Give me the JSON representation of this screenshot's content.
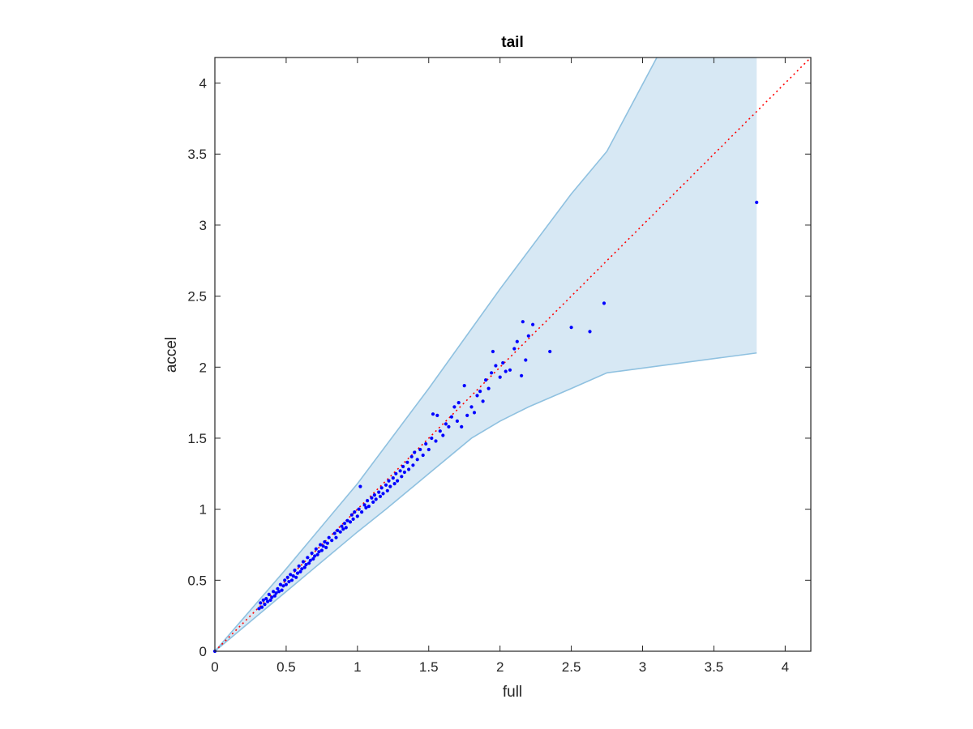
{
  "chart_data": {
    "type": "scatter",
    "title": "tail",
    "xlabel": "full",
    "ylabel": "accel",
    "xlim": [
      0,
      4.18
    ],
    "ylim": [
      0,
      4.18
    ],
    "xticks": [
      "0",
      "0.5",
      "1",
      "1.5",
      "2",
      "2.5",
      "3",
      "3.5",
      "4"
    ],
    "yticks": [
      "0",
      "0.5",
      "1",
      "1.5",
      "2",
      "2.5",
      "3",
      "3.5",
      "4"
    ],
    "grid": false,
    "colors": {
      "points": "#0000ff",
      "reference_line": "#ff0000",
      "band_fill": "#d7e8f4",
      "band_edge": "#8fc1e0",
      "axes": "#262626"
    },
    "reference_line": {
      "style": "dotted",
      "points": [
        [
          0,
          0
        ],
        [
          4.18,
          4.18
        ]
      ]
    },
    "band": {
      "upper": [
        [
          0,
          0
        ],
        [
          0.5,
          0.58
        ],
        [
          1,
          1.18
        ],
        [
          1.5,
          1.85
        ],
        [
          2,
          2.55
        ],
        [
          2.5,
          3.22
        ],
        [
          2.75,
          3.52
        ],
        [
          3.1,
          4.18
        ],
        [
          3.8,
          4.18
        ]
      ],
      "lower": [
        [
          0,
          0
        ],
        [
          0.5,
          0.42
        ],
        [
          1,
          0.84
        ],
        [
          1.2,
          1.0
        ],
        [
          1.5,
          1.25
        ],
        [
          1.8,
          1.5
        ],
        [
          2,
          1.62
        ],
        [
          2.2,
          1.72
        ],
        [
          2.5,
          1.85
        ],
        [
          2.75,
          1.96
        ],
        [
          3.8,
          2.1
        ]
      ]
    },
    "series": [
      {
        "values": [
          [
            0.0,
            0.0
          ],
          [
            0.31,
            0.3
          ],
          [
            0.32,
            0.34
          ],
          [
            0.33,
            0.31
          ],
          [
            0.34,
            0.36
          ],
          [
            0.35,
            0.33
          ],
          [
            0.36,
            0.37
          ],
          [
            0.37,
            0.35
          ],
          [
            0.38,
            0.4
          ],
          [
            0.39,
            0.36
          ],
          [
            0.4,
            0.38
          ],
          [
            0.41,
            0.42
          ],
          [
            0.42,
            0.39
          ],
          [
            0.43,
            0.41
          ],
          [
            0.44,
            0.44
          ],
          [
            0.45,
            0.42
          ],
          [
            0.46,
            0.47
          ],
          [
            0.47,
            0.43
          ],
          [
            0.48,
            0.46
          ],
          [
            0.49,
            0.5
          ],
          [
            0.5,
            0.47
          ],
          [
            0.51,
            0.52
          ],
          [
            0.52,
            0.49
          ],
          [
            0.53,
            0.54
          ],
          [
            0.54,
            0.5
          ],
          [
            0.55,
            0.53
          ],
          [
            0.56,
            0.57
          ],
          [
            0.57,
            0.52
          ],
          [
            0.58,
            0.55
          ],
          [
            0.59,
            0.6
          ],
          [
            0.6,
            0.56
          ],
          [
            0.61,
            0.58
          ],
          [
            0.62,
            0.63
          ],
          [
            0.63,
            0.59
          ],
          [
            0.64,
            0.61
          ],
          [
            0.65,
            0.66
          ],
          [
            0.66,
            0.62
          ],
          [
            0.67,
            0.64
          ],
          [
            0.68,
            0.69
          ],
          [
            0.69,
            0.65
          ],
          [
            0.7,
            0.67
          ],
          [
            0.71,
            0.72
          ],
          [
            0.72,
            0.68
          ],
          [
            0.73,
            0.7
          ],
          [
            0.74,
            0.75
          ],
          [
            0.75,
            0.71
          ],
          [
            0.76,
            0.74
          ],
          [
            0.77,
            0.77
          ],
          [
            0.78,
            0.73
          ],
          [
            0.79,
            0.76
          ],
          [
            0.8,
            0.8
          ],
          [
            0.82,
            0.78
          ],
          [
            0.84,
            0.83
          ],
          [
            0.85,
            0.8
          ],
          [
            0.86,
            0.85
          ],
          [
            0.88,
            0.84
          ],
          [
            0.89,
            0.88
          ],
          [
            0.9,
            0.86
          ],
          [
            0.91,
            0.9
          ],
          [
            0.92,
            0.87
          ],
          [
            0.93,
            0.92
          ],
          [
            0.95,
            0.91
          ],
          [
            0.96,
            0.96
          ],
          [
            0.97,
            0.93
          ],
          [
            0.98,
            0.98
          ],
          [
            1.0,
            0.95
          ],
          [
            1.01,
            1.0
          ],
          [
            1.02,
            1.16
          ],
          [
            1.03,
            0.98
          ],
          [
            1.05,
            1.03
          ],
          [
            1.06,
            1.01
          ],
          [
            1.07,
            1.06
          ],
          [
            1.08,
            1.02
          ],
          [
            1.1,
            1.08
          ],
          [
            1.11,
            1.05
          ],
          [
            1.12,
            1.1
          ],
          [
            1.13,
            1.07
          ],
          [
            1.15,
            1.12
          ],
          [
            1.16,
            1.09
          ],
          [
            1.17,
            1.15
          ],
          [
            1.18,
            1.11
          ],
          [
            1.2,
            1.17
          ],
          [
            1.21,
            1.13
          ],
          [
            1.22,
            1.2
          ],
          [
            1.23,
            1.16
          ],
          [
            1.25,
            1.22
          ],
          [
            1.26,
            1.18
          ],
          [
            1.27,
            1.25
          ],
          [
            1.28,
            1.2
          ],
          [
            1.3,
            1.27
          ],
          [
            1.31,
            1.23
          ],
          [
            1.32,
            1.3
          ],
          [
            1.33,
            1.26
          ],
          [
            1.35,
            1.33
          ],
          [
            1.36,
            1.28
          ],
          [
            1.38,
            1.37
          ],
          [
            1.39,
            1.31
          ],
          [
            1.4,
            1.4
          ],
          [
            1.42,
            1.35
          ],
          [
            1.44,
            1.42
          ],
          [
            1.46,
            1.38
          ],
          [
            1.48,
            1.46
          ],
          [
            1.5,
            1.42
          ],
          [
            1.52,
            1.5
          ],
          [
            1.53,
            1.67
          ],
          [
            1.55,
            1.48
          ],
          [
            1.56,
            1.66
          ],
          [
            1.58,
            1.55
          ],
          [
            1.6,
            1.52
          ],
          [
            1.62,
            1.6
          ],
          [
            1.64,
            1.58
          ],
          [
            1.66,
            1.65
          ],
          [
            1.68,
            1.72
          ],
          [
            1.7,
            1.62
          ],
          [
            1.71,
            1.75
          ],
          [
            1.73,
            1.58
          ],
          [
            1.75,
            1.87
          ],
          [
            1.77,
            1.66
          ],
          [
            1.8,
            1.72
          ],
          [
            1.82,
            1.68
          ],
          [
            1.84,
            1.8
          ],
          [
            1.86,
            1.83
          ],
          [
            1.88,
            1.76
          ],
          [
            1.9,
            1.91
          ],
          [
            1.92,
            1.85
          ],
          [
            1.94,
            1.96
          ],
          [
            1.95,
            2.11
          ],
          [
            1.97,
            2.01
          ],
          [
            2.0,
            1.93
          ],
          [
            2.02,
            2.03
          ],
          [
            2.04,
            1.97
          ],
          [
            2.07,
            1.98
          ],
          [
            2.1,
            2.13
          ],
          [
            2.12,
            2.18
          ],
          [
            2.15,
            1.94
          ],
          [
            2.16,
            2.32
          ],
          [
            2.18,
            2.05
          ],
          [
            2.2,
            2.22
          ],
          [
            2.23,
            2.3
          ],
          [
            2.35,
            2.11
          ],
          [
            2.5,
            2.28
          ],
          [
            2.63,
            2.25
          ],
          [
            2.73,
            2.45
          ],
          [
            3.8,
            3.16
          ]
        ]
      }
    ]
  }
}
